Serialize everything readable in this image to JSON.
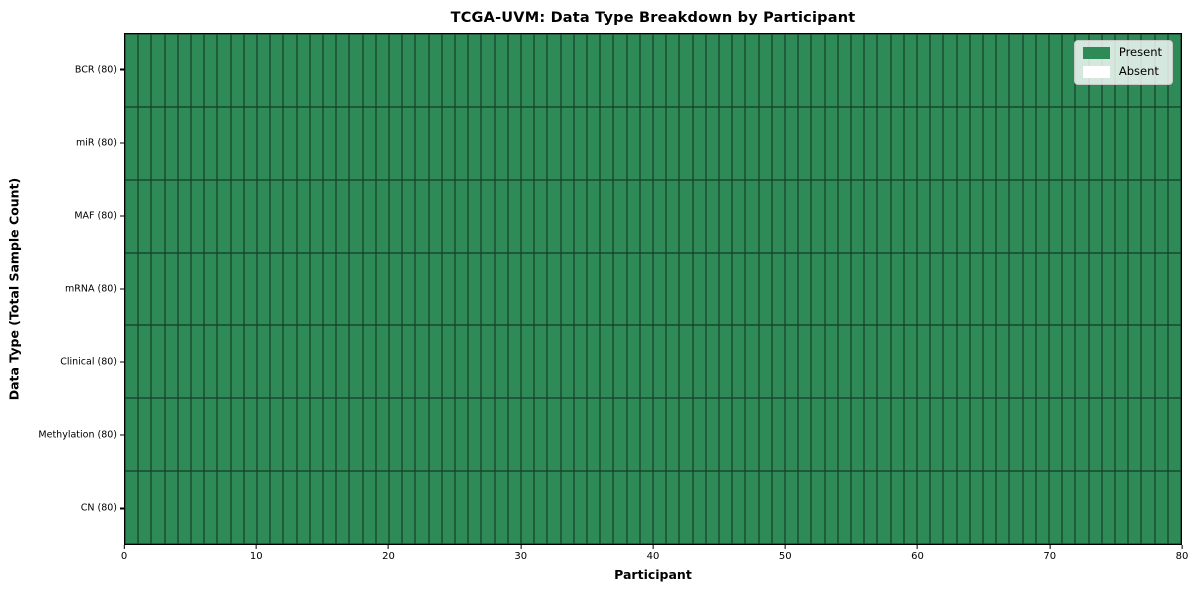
{
  "chart_data": {
    "type": "heatmap",
    "title": "TCGA-UVM: Data Type Breakdown by Participant",
    "xlabel": "Participant",
    "ylabel": "Data Type (Total Sample Count)",
    "n_participants": 80,
    "x_range": [
      0,
      80
    ],
    "x_ticks": [
      0,
      10,
      20,
      30,
      40,
      50,
      60,
      70,
      80
    ],
    "grid": true,
    "rows": [
      {
        "label": "BCR (80)",
        "total_samples": 80,
        "present": 80,
        "absent": 0
      },
      {
        "label": "miR (80)",
        "total_samples": 80,
        "present": 80,
        "absent": 0
      },
      {
        "label": "MAF (80)",
        "total_samples": 80,
        "present": 80,
        "absent": 0
      },
      {
        "label": "mRNA (80)",
        "total_samples": 80,
        "present": 80,
        "absent": 0
      },
      {
        "label": "Clinical (80)",
        "total_samples": 80,
        "present": 80,
        "absent": 0
      },
      {
        "label": "Methylation (80)",
        "total_samples": 80,
        "present": 80,
        "absent": 0
      },
      {
        "label": "CN (80)",
        "total_samples": 80,
        "present": 80,
        "absent": 0
      }
    ],
    "colors": {
      "present": "#2e8b57",
      "absent": "#ffffff",
      "cell_border": "rgba(0,0,0,0.55)",
      "axis": "#000000"
    },
    "legend_position": "upper right"
  },
  "legend": {
    "items": [
      {
        "label": "Present",
        "color": "#2e8b57"
      },
      {
        "label": "Absent",
        "color": "#ffffff"
      }
    ]
  }
}
